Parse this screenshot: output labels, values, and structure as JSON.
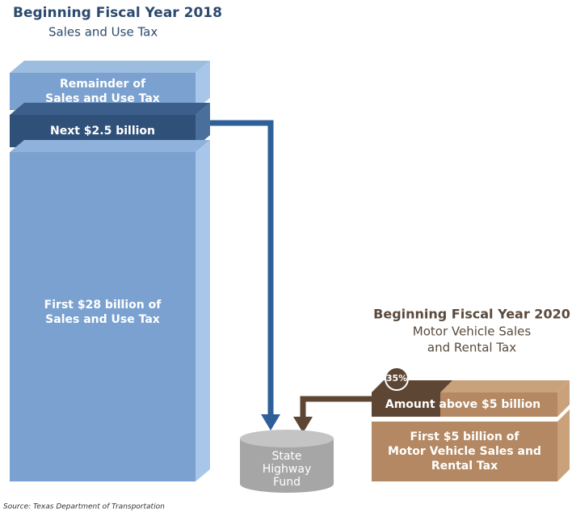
{
  "left": {
    "title": "Beginning Fiscal Year 2018",
    "subtitle": "Sales and Use Tax",
    "blocks": [
      [
        "Remainder of",
        "Sales and Use Tax"
      ],
      [
        "Next $2.5 billion"
      ],
      [
        "First $28 billion of",
        "Sales and Use Tax"
      ]
    ]
  },
  "right": {
    "title": "Beginning Fiscal Year 2020",
    "subtitle": [
      "Motor Vehicle Sales",
      "and Rental Tax"
    ],
    "badge": "35%",
    "blocks": [
      [
        "Amount above $5 billion"
      ],
      [
        "First $5 billion of",
        "Motor Vehicle Sales and",
        "Rental Tax"
      ]
    ]
  },
  "fund": [
    "State",
    "Highway",
    "Fund"
  ],
  "source": "Source: Texas Department of Transportation"
}
